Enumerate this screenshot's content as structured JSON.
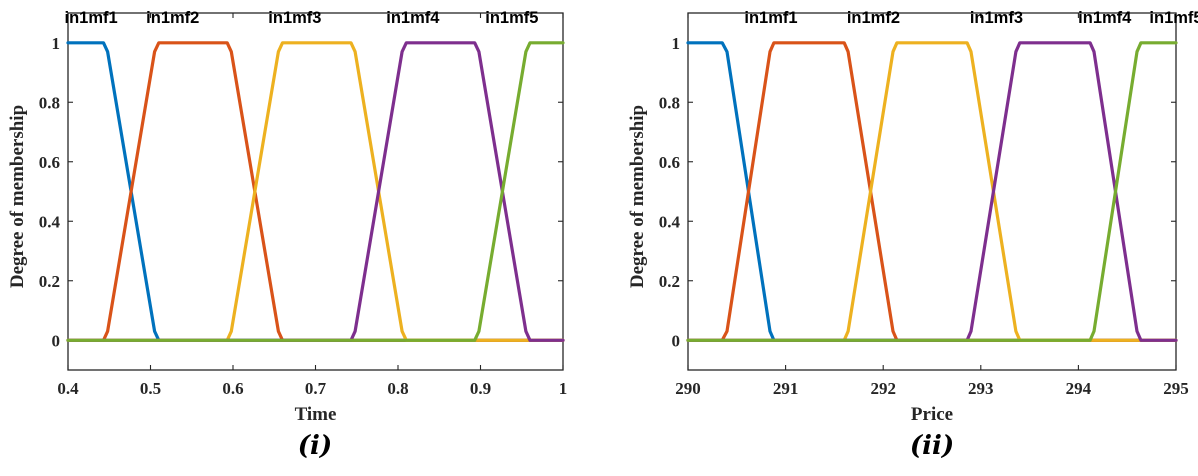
{
  "chart_data": [
    {
      "type": "line",
      "caption": "(i)",
      "xlabel": "Time",
      "ylabel": "Degree of membership",
      "xlim": [
        0.4,
        1.0
      ],
      "ylim": [
        -0.1,
        1.1
      ],
      "xticks": [
        0.4,
        0.5,
        0.6,
        0.7,
        0.8,
        0.9,
        1.0
      ],
      "xtick_labels": [
        "0.4",
        "0.5",
        "0.6",
        "0.7",
        "0.8",
        "0.9",
        "1"
      ],
      "yticks": [
        0,
        0.2,
        0.4,
        0.6,
        0.8,
        1
      ],
      "ytick_labels": [
        "0",
        "0.2",
        "0.4",
        "0.6",
        "0.8",
        "1"
      ],
      "series": [
        {
          "name": "in1mf1",
          "color": "#0072BD",
          "x": [
            0.4,
            0.443,
            0.448,
            0.505,
            0.51,
            1.0
          ],
          "y": [
            1,
            1,
            0.97,
            0.03,
            0,
            0
          ]
        },
        {
          "name": "in1mf2",
          "color": "#D95319",
          "x": [
            0.4,
            0.443,
            0.448,
            0.505,
            0.51,
            0.593,
            0.598,
            0.655,
            0.66,
            1.0
          ],
          "y": [
            0,
            0,
            0.03,
            0.97,
            1,
            1,
            0.97,
            0.03,
            0,
            0
          ]
        },
        {
          "name": "in1mf3",
          "color": "#EDB120",
          "x": [
            0.4,
            0.593,
            0.598,
            0.655,
            0.66,
            0.743,
            0.748,
            0.805,
            0.81,
            1.0
          ],
          "y": [
            0,
            0,
            0.03,
            0.97,
            1,
            1,
            0.97,
            0.03,
            0,
            0
          ]
        },
        {
          "name": "in1mf4",
          "color": "#7E2F8E",
          "x": [
            0.4,
            0.743,
            0.748,
            0.805,
            0.81,
            0.893,
            0.898,
            0.955,
            0.96,
            1.0
          ],
          "y": [
            0,
            0,
            0.03,
            0.97,
            1,
            1,
            0.97,
            0.03,
            0,
            0
          ]
        },
        {
          "name": "in1mf5",
          "color": "#77AC30",
          "x": [
            0.4,
            0.893,
            0.898,
            0.955,
            0.96,
            1.0
          ],
          "y": [
            0,
            0,
            0.03,
            0.97,
            1,
            1
          ]
        }
      ]
    },
    {
      "type": "line",
      "caption": "(ii)",
      "xlabel": "Price",
      "ylabel": "Degree of membership",
      "xlim": [
        290,
        295
      ],
      "ylim": [
        -0.1,
        1.1
      ],
      "xticks": [
        290,
        291,
        292,
        293,
        294,
        295
      ],
      "xtick_labels": [
        "290",
        "291",
        "292",
        "293",
        "294",
        "295"
      ],
      "yticks": [
        0,
        0.2,
        0.4,
        0.6,
        0.8,
        1
      ],
      "ytick_labels": [
        "0",
        "0.2",
        "0.4",
        "0.6",
        "0.8",
        "1"
      ],
      "series": [
        {
          "name": "in1mf1",
          "color": "#0072BD",
          "x": [
            290,
            290.35,
            290.4,
            290.84,
            290.88,
            295
          ],
          "y": [
            1,
            1,
            0.97,
            0.03,
            0,
            0
          ]
        },
        {
          "name": "in1mf2",
          "color": "#D95319",
          "x": [
            290,
            290.35,
            290.4,
            290.84,
            290.88,
            291.6,
            291.64,
            292.1,
            292.14,
            295
          ],
          "y": [
            0,
            0,
            0.03,
            0.97,
            1,
            1,
            0.97,
            0.03,
            0,
            0
          ]
        },
        {
          "name": "in1mf3",
          "color": "#EDB120",
          "x": [
            290,
            291.6,
            291.64,
            292.1,
            292.14,
            292.86,
            292.9,
            293.36,
            293.4,
            295
          ],
          "y": [
            0,
            0,
            0.03,
            0.97,
            1,
            1,
            0.97,
            0.03,
            0,
            0
          ]
        },
        {
          "name": "in1mf4",
          "color": "#7E2F8E",
          "x": [
            290,
            292.86,
            292.9,
            293.36,
            293.4,
            294.12,
            294.16,
            294.6,
            294.64,
            295
          ],
          "y": [
            0,
            0,
            0.03,
            0.97,
            1,
            1,
            0.97,
            0.03,
            0,
            0
          ]
        },
        {
          "name": "in1mf5",
          "color": "#77AC30",
          "x": [
            290,
            294.12,
            294.16,
            294.6,
            294.64,
            295
          ],
          "y": [
            0,
            0,
            0.03,
            0.97,
            1,
            1
          ]
        }
      ]
    }
  ]
}
